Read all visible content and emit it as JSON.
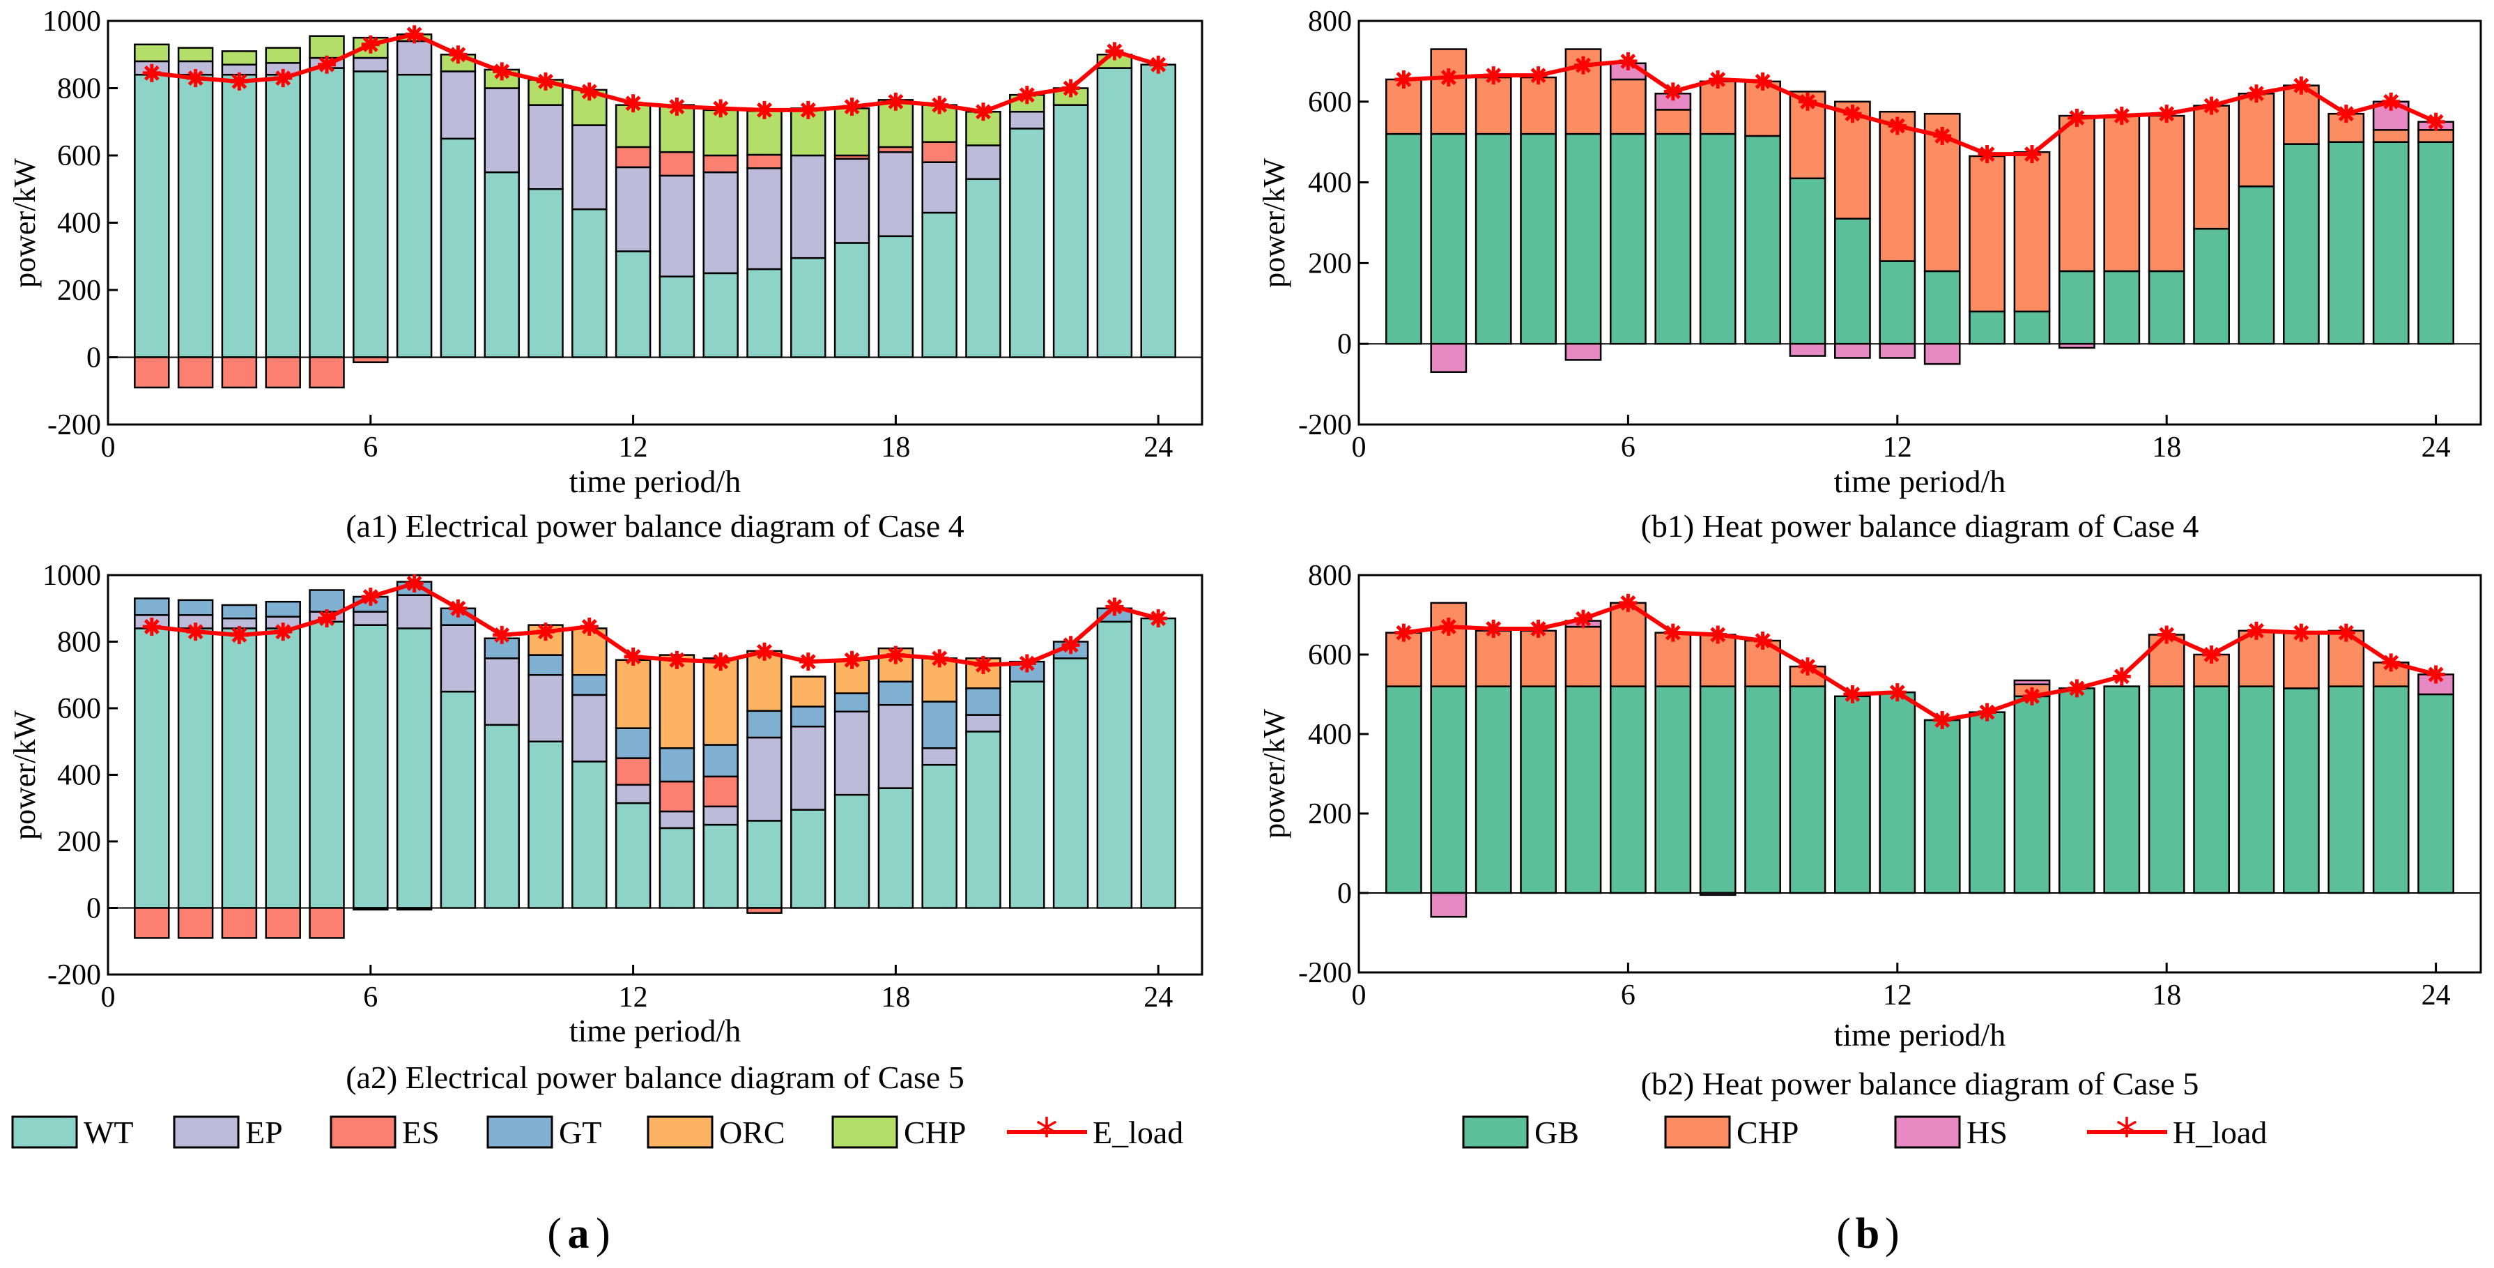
{
  "colors": {
    "WT": "#8ed3c7",
    "EP": "#bebada",
    "ES": "#fb8072",
    "GT": "#80b1d3",
    "ORC": "#fdb462",
    "CHP_e": "#b3de69",
    "GB": "#5bbf9b",
    "CHP_h": "#fc8d62",
    "HS": "#e78ac3",
    "load": "#ff0000"
  },
  "legend_a": {
    "wt": "WT",
    "ep": "EP",
    "es": "ES",
    "gt": "GT",
    "orc": "ORC",
    "chp": "CHP",
    "eload": "E_load"
  },
  "legend_b": {
    "gb": "GB",
    "chp": "CHP",
    "hs": "HS",
    "hload": "H_load"
  },
  "panel_labels": {
    "a": "a",
    "b": "b"
  },
  "chart_data": [
    {
      "id": "a1",
      "type": "bar",
      "stacked": true,
      "title": "(a1) Electrical power balance diagram of Case 4",
      "xlabel": "time period/h",
      "ylabel": "power/kW",
      "xlim": [
        0,
        25
      ],
      "ylim": [
        -200,
        1000
      ],
      "xticks": [
        0,
        6,
        12,
        18,
        24
      ],
      "yticks": [
        -200,
        0,
        200,
        400,
        600,
        800,
        1000
      ],
      "x": [
        1,
        2,
        3,
        4,
        5,
        6,
        7,
        8,
        9,
        10,
        11,
        12,
        13,
        14,
        15,
        16,
        17,
        18,
        19,
        20,
        21,
        22,
        23,
        24
      ],
      "series": [
        {
          "name": "WT",
          "color_key": "WT",
          "values": [
            840,
            840,
            840,
            840,
            860,
            850,
            840,
            650,
            550,
            500,
            440,
            315,
            240,
            250,
            262,
            295,
            340,
            360,
            430,
            530,
            680,
            750,
            860,
            870
          ]
        },
        {
          "name": "EP",
          "color_key": "EP",
          "values": [
            40,
            40,
            30,
            35,
            30,
            40,
            100,
            200,
            250,
            250,
            250,
            250,
            300,
            300,
            300,
            305,
            250,
            250,
            150,
            100,
            50,
            0,
            0,
            0
          ]
        },
        {
          "name": "ES",
          "color_key": "ES",
          "values": [
            -90,
            -90,
            -90,
            -90,
            -90,
            -15,
            0,
            0,
            0,
            0,
            0,
            60,
            70,
            50,
            40,
            0,
            10,
            15,
            60,
            0,
            0,
            0,
            0,
            0
          ]
        },
        {
          "name": "GT",
          "color_key": "GT",
          "values": [
            0,
            0,
            0,
            0,
            0,
            0,
            0,
            0,
            0,
            0,
            0,
            0,
            0,
            0,
            0,
            0,
            0,
            0,
            0,
            0,
            0,
            0,
            0,
            0
          ]
        },
        {
          "name": "ORC",
          "color_key": "ORC",
          "values": [
            0,
            0,
            0,
            0,
            0,
            0,
            0,
            0,
            0,
            0,
            0,
            0,
            0,
            0,
            0,
            0,
            0,
            0,
            0,
            0,
            0,
            0,
            0,
            0
          ]
        },
        {
          "name": "CHP",
          "color_key": "CHP_e",
          "values": [
            50,
            40,
            40,
            45,
            65,
            60,
            20,
            50,
            55,
            75,
            105,
            125,
            140,
            135,
            130,
            140,
            140,
            140,
            110,
            100,
            50,
            50,
            40,
            0
          ]
        }
      ],
      "load": {
        "name": "E_load",
        "values": [
          845,
          830,
          820,
          830,
          870,
          930,
          960,
          900,
          850,
          820,
          790,
          755,
          745,
          740,
          735,
          735,
          745,
          760,
          750,
          730,
          780,
          800,
          910,
          870
        ]
      }
    },
    {
      "id": "b1",
      "type": "bar",
      "stacked": true,
      "title": "(b1) Heat power balance diagram of Case 4",
      "xlabel": "time period/h",
      "ylabel": "power/kW",
      "xlim": [
        0,
        25
      ],
      "ylim": [
        -200,
        800
      ],
      "xticks": [
        0,
        6,
        12,
        18,
        24
      ],
      "yticks": [
        -200,
        0,
        200,
        400,
        600,
        800
      ],
      "x": [
        1,
        2,
        3,
        4,
        5,
        6,
        7,
        8,
        9,
        10,
        11,
        12,
        13,
        14,
        15,
        16,
        17,
        18,
        19,
        20,
        21,
        22,
        23,
        24
      ],
      "series": [
        {
          "name": "GB",
          "color_key": "GB",
          "values": [
            520,
            520,
            520,
            520,
            520,
            520,
            520,
            520,
            515,
            410,
            310,
            205,
            180,
            80,
            80,
            180,
            180,
            180,
            285,
            390,
            495,
            500,
            500,
            500
          ]
        },
        {
          "name": "CHP",
          "color_key": "CHP_h",
          "values": [
            135,
            210,
            140,
            140,
            210,
            135,
            60,
            130,
            135,
            215,
            290,
            370,
            390,
            385,
            395,
            385,
            385,
            385,
            305,
            230,
            145,
            70,
            30,
            30
          ]
        },
        {
          "name": "HS",
          "color_key": "HS",
          "values": [
            0,
            -70,
            0,
            0,
            -40,
            40,
            40,
            0,
            0,
            -30,
            -35,
            -35,
            -50,
            0,
            0,
            -10,
            0,
            0,
            0,
            0,
            0,
            0,
            70,
            20
          ]
        }
      ],
      "load": {
        "name": "H_load",
        "values": [
          655,
          660,
          665,
          665,
          690,
          700,
          625,
          655,
          650,
          600,
          570,
          540,
          515,
          470,
          470,
          560,
          565,
          570,
          590,
          620,
          640,
          570,
          600,
          550
        ]
      }
    },
    {
      "id": "a2",
      "type": "bar",
      "stacked": true,
      "title": "(a2) Electrical power balance diagram of Case 5",
      "xlabel": "time period/h",
      "ylabel": "power/kW",
      "xlim": [
        0,
        25
      ],
      "ylim": [
        -200,
        1000
      ],
      "xticks": [
        0,
        6,
        12,
        18,
        24
      ],
      "yticks": [
        -200,
        0,
        200,
        400,
        600,
        800,
        1000
      ],
      "x": [
        1,
        2,
        3,
        4,
        5,
        6,
        7,
        8,
        9,
        10,
        11,
        12,
        13,
        14,
        15,
        16,
        17,
        18,
        19,
        20,
        21,
        22,
        23,
        24
      ],
      "series": [
        {
          "name": "WT",
          "color_key": "WT",
          "values": [
            840,
            840,
            840,
            840,
            860,
            850,
            840,
            650,
            550,
            500,
            440,
            315,
            240,
            250,
            262,
            295,
            340,
            360,
            430,
            530,
            680,
            750,
            860,
            870
          ]
        },
        {
          "name": "EP",
          "color_key": "EP",
          "values": [
            40,
            40,
            30,
            35,
            30,
            40,
            100,
            200,
            200,
            200,
            200,
            55,
            50,
            55,
            250,
            250,
            250,
            250,
            50,
            50,
            0,
            0,
            0,
            0
          ]
        },
        {
          "name": "ES",
          "color_key": "ES",
          "values": [
            -90,
            -90,
            -90,
            -90,
            -90,
            -5,
            -5,
            0,
            0,
            0,
            0,
            80,
            90,
            90,
            -15,
            0,
            0,
            0,
            0,
            0,
            0,
            0,
            0,
            0
          ]
        },
        {
          "name": "GT",
          "color_key": "GT",
          "values": [
            50,
            45,
            40,
            45,
            65,
            45,
            40,
            50,
            60,
            60,
            60,
            90,
            100,
            95,
            80,
            60,
            55,
            70,
            140,
            80,
            60,
            50,
            40,
            0
          ]
        },
        {
          "name": "ORC",
          "color_key": "ORC",
          "values": [
            0,
            0,
            0,
            0,
            0,
            0,
            0,
            0,
            0,
            90,
            140,
            205,
            280,
            260,
            180,
            90,
            100,
            100,
            130,
            90,
            0,
            0,
            0,
            0
          ]
        }
      ],
      "load": {
        "name": "E_load",
        "values": [
          845,
          830,
          820,
          830,
          870,
          935,
          975,
          900,
          820,
          830,
          845,
          755,
          745,
          740,
          770,
          740,
          745,
          760,
          750,
          730,
          735,
          790,
          905,
          870
        ]
      }
    },
    {
      "id": "b2",
      "type": "bar",
      "stacked": true,
      "title": "(b2) Heat power balance diagram of Case 5",
      "xlabel": "time period/h",
      "ylabel": "power/kW",
      "xlim": [
        0,
        25
      ],
      "ylim": [
        -200,
        800
      ],
      "xticks": [
        0,
        6,
        12,
        18,
        24
      ],
      "yticks": [
        -200,
        0,
        200,
        400,
        600,
        800
      ],
      "x": [
        1,
        2,
        3,
        4,
        5,
        6,
        7,
        8,
        9,
        10,
        11,
        12,
        13,
        14,
        15,
        16,
        17,
        18,
        19,
        20,
        21,
        22,
        23,
        24
      ],
      "series": [
        {
          "name": "GB",
          "color_key": "GB",
          "values": [
            520,
            520,
            520,
            520,
            520,
            520,
            520,
            520,
            520,
            520,
            495,
            505,
            435,
            455,
            495,
            515,
            520,
            520,
            520,
            520,
            515,
            520,
            520,
            500
          ]
        },
        {
          "name": "CHP",
          "color_key": "CHP_h",
          "values": [
            135,
            210,
            140,
            140,
            150,
            210,
            135,
            130,
            115,
            50,
            0,
            0,
            0,
            0,
            30,
            0,
            0,
            130,
            80,
            140,
            140,
            140,
            60,
            0
          ]
        },
        {
          "name": "HS",
          "color_key": "HS",
          "values": [
            0,
            -60,
            0,
            0,
            15,
            0,
            0,
            -5,
            0,
            0,
            0,
            0,
            0,
            0,
            10,
            0,
            0,
            0,
            0,
            0,
            0,
            0,
            0,
            50
          ]
        }
      ],
      "load": {
        "name": "H_load",
        "values": [
          655,
          670,
          665,
          665,
          690,
          730,
          655,
          650,
          635,
          570,
          500,
          505,
          435,
          455,
          495,
          515,
          545,
          650,
          600,
          660,
          655,
          655,
          580,
          550
        ]
      }
    }
  ]
}
